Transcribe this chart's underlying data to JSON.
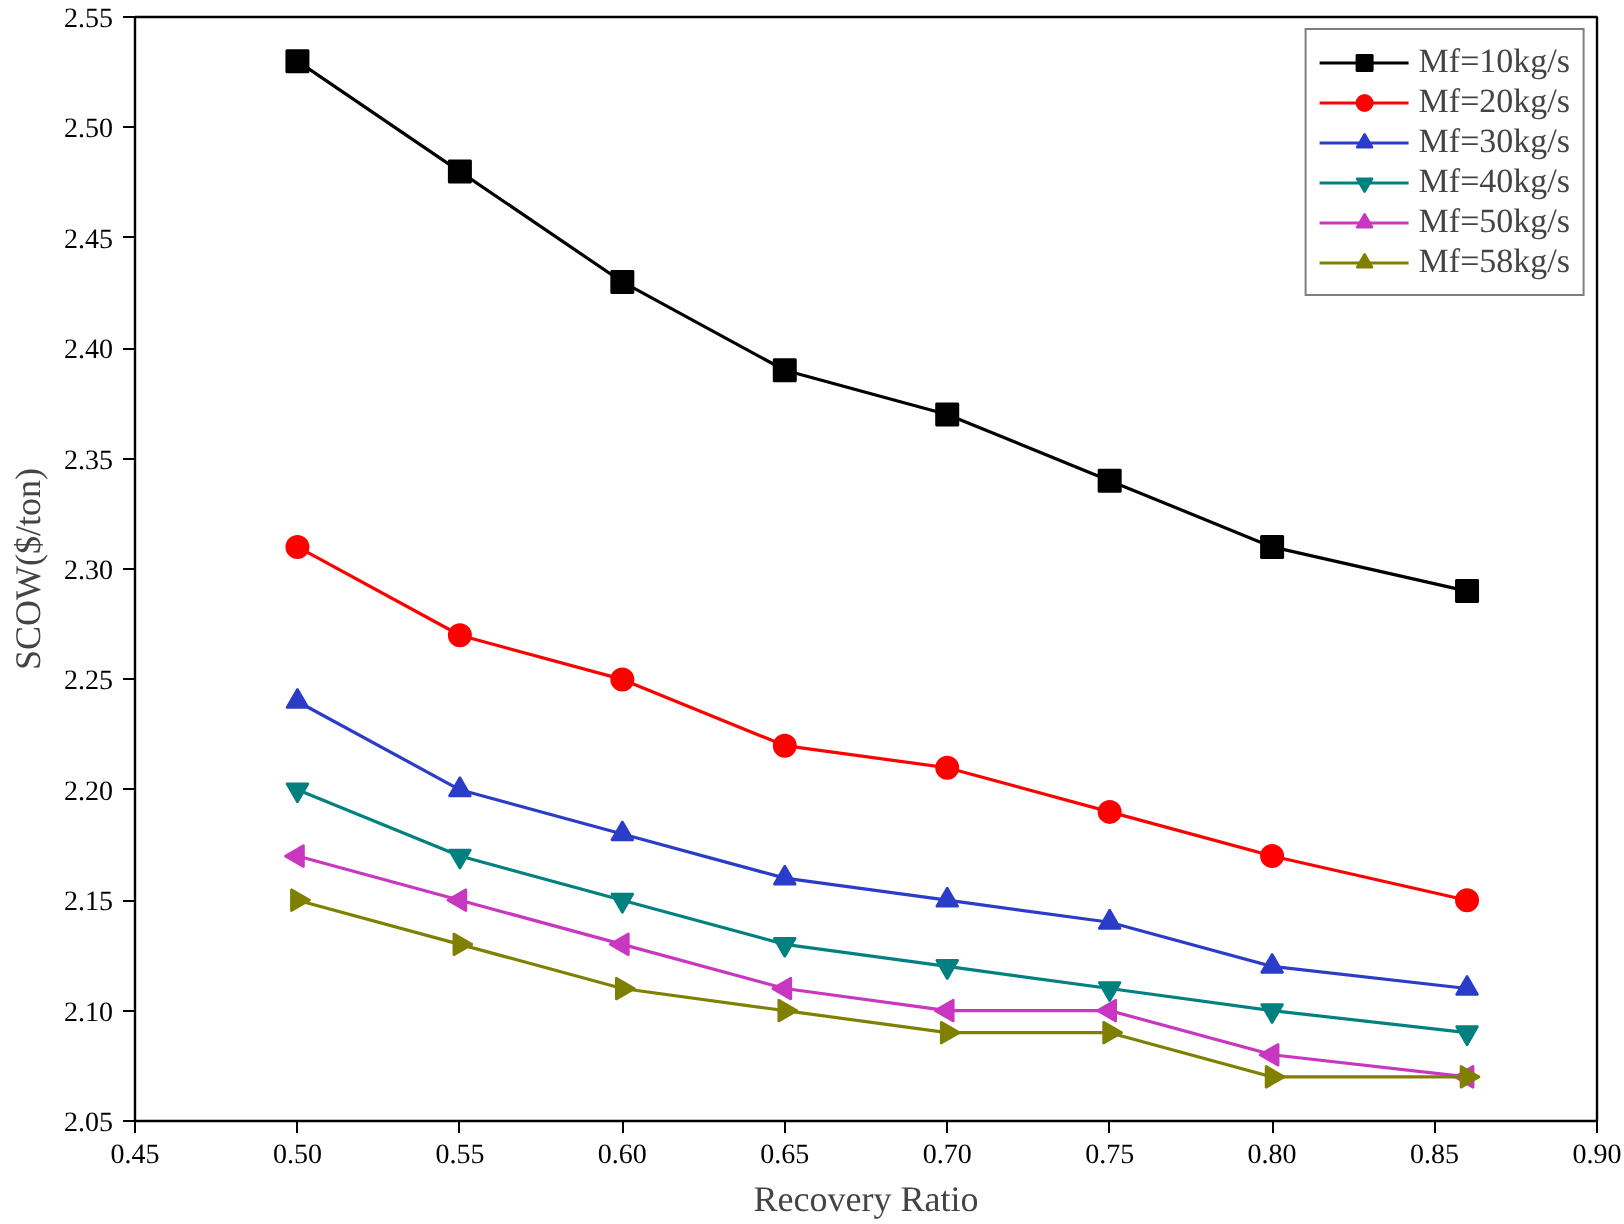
{
  "chart_data": {
    "type": "line",
    "xlabel": "Recovery Ratio",
    "ylabel": "SCOW($/ton)",
    "x": [
      0.5,
      0.55,
      0.6,
      0.65,
      0.7,
      0.75,
      0.8,
      0.86
    ],
    "xlim": [
      0.45,
      0.9
    ],
    "xticks": [
      {
        "value": 0.45,
        "label": "0.45"
      },
      {
        "value": 0.5,
        "label": "0.50"
      },
      {
        "value": 0.55,
        "label": "0.55"
      },
      {
        "value": 0.6,
        "label": "0.60"
      },
      {
        "value": 0.65,
        "label": "0.65"
      },
      {
        "value": 0.7,
        "label": "0.70"
      },
      {
        "value": 0.75,
        "label": "0.75"
      },
      {
        "value": 0.8,
        "label": "0.80"
      },
      {
        "value": 0.85,
        "label": "0.85"
      },
      {
        "value": 0.9,
        "label": "0.90"
      }
    ],
    "ylim": [
      2.05,
      2.55
    ],
    "yticks": [
      2.05,
      {
        "value": 2.1,
        "label": "2.10"
      },
      2.15,
      {
        "value": 2.2,
        "label": "2.20"
      },
      2.25,
      {
        "value": 2.3,
        "label": "2.30"
      },
      2.35,
      {
        "value": 2.4,
        "label": "2.40"
      },
      2.45,
      {
        "value": 2.5,
        "label": "2.50"
      },
      2.55
    ],
    "grid": false,
    "legend": "top right",
    "line_style": "solid",
    "series": [
      {
        "name": "Mf=10kg/s",
        "color": "#000000",
        "marker": "square",
        "values": [
          2.53,
          2.48,
          2.43,
          2.39,
          2.37,
          2.34,
          2.31,
          2.29
        ]
      },
      {
        "name": "Mf=20kg/s",
        "color": "#ff0000",
        "marker": "circle",
        "values": [
          2.31,
          2.27,
          2.25,
          2.22,
          2.21,
          2.19,
          2.17,
          2.15
        ]
      },
      {
        "name": "Mf=30kg/s",
        "color": "#2a3cc8",
        "marker": "triangle",
        "values": [
          2.24,
          2.2,
          2.18,
          2.16,
          2.15,
          2.14,
          2.12,
          2.11
        ]
      },
      {
        "name": "Mf=40kg/s",
        "color": "#00807f",
        "marker": "triangle_down",
        "values": [
          2.2,
          2.17,
          2.15,
          2.13,
          2.12,
          2.11,
          2.1,
          2.09
        ]
      },
      {
        "name": "Mf=50kg/s",
        "color": "#c837c0",
        "marker": "triangle_left",
        "values": [
          2.17,
          2.15,
          2.13,
          2.11,
          2.1,
          2.1,
          2.08,
          2.07
        ]
      },
      {
        "name": "Mf=58kg/s",
        "color": "#808000",
        "marker": "triangle_right",
        "values": [
          2.15,
          2.13,
          2.11,
          2.1,
          2.09,
          2.09,
          2.07,
          2.07
        ]
      }
    ]
  }
}
